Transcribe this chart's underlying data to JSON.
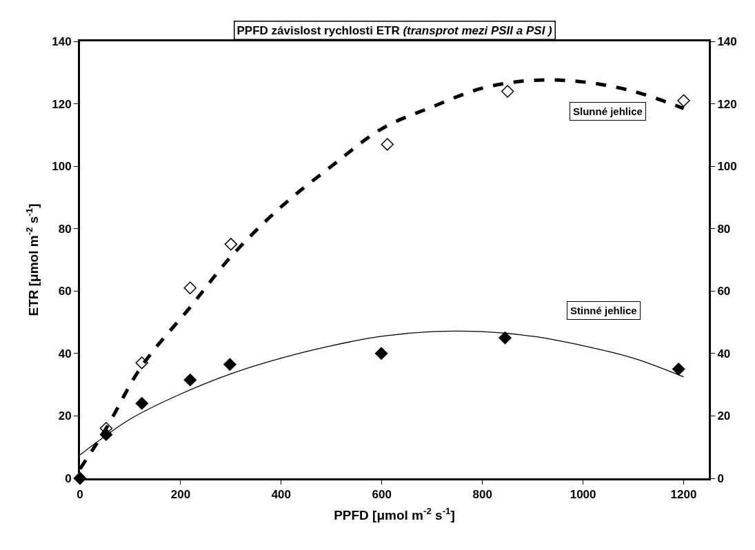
{
  "chart_data": {
    "type": "scatter",
    "title": "PPFD závislost rychlosti ETR (transprot mezi PSII a PSI )",
    "xlabel": "PPFD [μmol m$^{-2}$ s$^{-1}$]",
    "ylabel": "ETR [μmol m$^{-2}$ s$^{-1}$]",
    "series": [
      {
        "name": "Slunné jehlice",
        "marker": "diamond",
        "color": "#ffffff",
        "x": [
          0,
          52,
          123,
          219,
          300,
          611,
          850,
          1200
        ],
        "values": [
          0,
          16,
          37,
          61,
          75,
          107,
          124,
          121
        ]
      },
      {
        "name": "Stinné jehlice",
        "marker": "diamond",
        "color": "#000000",
        "x": [
          0,
          52,
          123,
          219,
          298,
          599,
          845,
          1190
        ],
        "values": [
          0,
          14,
          24,
          31.5,
          36.5,
          40,
          45,
          35
        ]
      },
      {
        "type": "line",
        "line_style": "dashed",
        "color": "#000000",
        "x": [
          0,
          52,
          123,
          220,
          300,
          400,
          500,
          600,
          700,
          800,
          900,
          1000,
          1100,
          1200
        ],
        "values": [
          3,
          16,
          36,
          55,
          71,
          87,
          100,
          112,
          119,
          125,
          127.5,
          127,
          124,
          118.5
        ]
      },
      {
        "type": "line",
        "line_style": "solid",
        "color": "#000000",
        "x": [
          0,
          100,
          200,
          300,
          400,
          500,
          600,
          700,
          800,
          900,
          1000,
          1100,
          1200
        ],
        "values": [
          7.5,
          19,
          27,
          33.5,
          38.5,
          42.5,
          45.5,
          47,
          47,
          45.5,
          42.5,
          38.5,
          32.5
        ]
      }
    ],
    "xlim": [
      0,
      1250
    ],
    "xticks": [
      0,
      200,
      400,
      600,
      800,
      1000,
      1200
    ],
    "ylim": [
      0,
      140
    ],
    "yticks": [
      0,
      20,
      40,
      60,
      80,
      100,
      120,
      140
    ],
    "y2lim": [
      0,
      140
    ],
    "y2ticks": [
      0,
      20,
      40,
      60,
      80,
      100,
      120,
      140
    ]
  }
}
